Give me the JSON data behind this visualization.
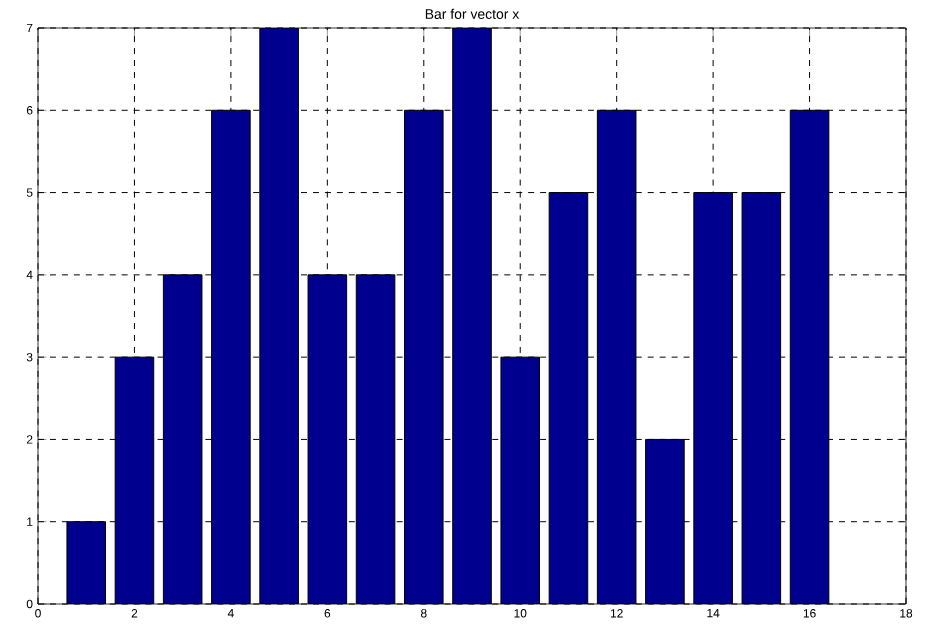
{
  "chart_data": {
    "type": "bar",
    "title": "Bar for vector x",
    "x": [
      1,
      2,
      3,
      4,
      5,
      6,
      7,
      8,
      9,
      10,
      11,
      12,
      13,
      14,
      15,
      16
    ],
    "values": [
      1,
      3,
      4,
      6,
      7,
      4,
      4,
      6,
      7,
      3,
      5,
      6,
      2,
      5,
      5,
      6
    ],
    "color": "#00008f",
    "xlim": [
      0,
      18
    ],
    "ylim": [
      0,
      7
    ],
    "xticks": [
      0,
      2,
      4,
      6,
      8,
      10,
      12,
      14,
      16,
      18
    ],
    "yticks": [
      0,
      1,
      2,
      3,
      4,
      5,
      6,
      7
    ],
    "grid": true
  }
}
